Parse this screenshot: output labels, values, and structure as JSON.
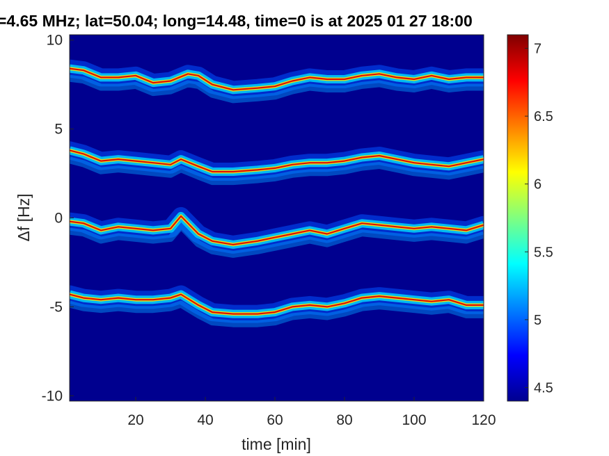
{
  "chart_data": {
    "type": "heatmap",
    "title": "=4.65 MHz;  lat=50.04; long=14.48, time=0 is at 2025 01 27 18:00",
    "xlabel": "time [min]",
    "ylabel": "Δf [Hz]",
    "xlim": [
      1,
      120
    ],
    "ylim": [
      -10.3,
      10.3
    ],
    "xticks": [
      20,
      40,
      60,
      80,
      100,
      120
    ],
    "yticks": [
      10,
      5,
      0,
      -5,
      -10
    ],
    "colorbar": {
      "colormap": "jet",
      "range": [
        4.4,
        7.1
      ],
      "ticks": [
        4.5,
        5,
        5.5,
        6,
        6.5,
        7
      ]
    },
    "series": [
      {
        "x": [
          1,
          5,
          10,
          15,
          20,
          25,
          30,
          35,
          38,
          42,
          48,
          55,
          60,
          65,
          70,
          75,
          80,
          85,
          90,
          95,
          100,
          105,
          110,
          115,
          120
        ],
        "y": [
          8.4,
          8.3,
          7.9,
          7.9,
          8.0,
          7.6,
          7.7,
          8.1,
          8.0,
          7.5,
          7.2,
          7.3,
          7.4,
          7.7,
          7.9,
          7.8,
          7.8,
          8.0,
          8.1,
          7.9,
          7.8,
          8.0,
          7.8,
          7.9,
          7.9
        ]
      },
      {
        "x": [
          1,
          5,
          10,
          15,
          20,
          25,
          30,
          33,
          38,
          42,
          48,
          55,
          60,
          65,
          70,
          75,
          80,
          85,
          90,
          95,
          100,
          105,
          110,
          115,
          120
        ],
        "y": [
          3.8,
          3.6,
          3.2,
          3.3,
          3.2,
          3.1,
          3.0,
          3.3,
          2.9,
          2.6,
          2.6,
          2.7,
          2.8,
          3.0,
          3.1,
          3.1,
          3.2,
          3.4,
          3.5,
          3.3,
          3.1,
          3.0,
          2.9,
          3.1,
          3.3
        ]
      },
      {
        "x": [
          1,
          5,
          10,
          15,
          20,
          25,
          30,
          33,
          38,
          42,
          48,
          55,
          60,
          65,
          70,
          75,
          80,
          85,
          90,
          95,
          100,
          105,
          110,
          115,
          120
        ],
        "y": [
          -0.2,
          -0.3,
          -0.7,
          -0.5,
          -0.6,
          -0.7,
          -0.6,
          0.1,
          -0.9,
          -1.3,
          -1.5,
          -1.3,
          -1.1,
          -0.9,
          -0.7,
          -0.9,
          -0.6,
          -0.3,
          -0.4,
          -0.5,
          -0.6,
          -0.5,
          -0.6,
          -0.7,
          -0.4
        ]
      },
      {
        "x": [
          1,
          5,
          10,
          15,
          20,
          25,
          30,
          33,
          38,
          42,
          48,
          55,
          60,
          65,
          70,
          75,
          80,
          85,
          90,
          95,
          100,
          105,
          110,
          115,
          120
        ],
        "y": [
          -4.3,
          -4.5,
          -4.6,
          -4.5,
          -4.6,
          -4.6,
          -4.5,
          -4.3,
          -4.9,
          -5.3,
          -5.4,
          -5.4,
          -5.3,
          -5.0,
          -4.9,
          -5.0,
          -4.8,
          -4.5,
          -4.4,
          -4.5,
          -4.6,
          -4.7,
          -4.6,
          -4.9,
          -4.9
        ]
      }
    ]
  }
}
